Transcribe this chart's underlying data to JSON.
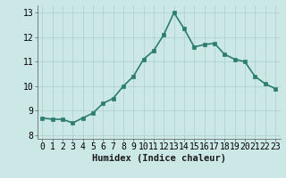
{
  "x": [
    0,
    1,
    2,
    3,
    4,
    5,
    6,
    7,
    8,
    9,
    10,
    11,
    12,
    13,
    14,
    15,
    16,
    17,
    18,
    19,
    20,
    21,
    22,
    23
  ],
  "y": [
    8.7,
    8.65,
    8.65,
    8.5,
    8.7,
    8.9,
    9.3,
    9.5,
    10.0,
    10.4,
    11.1,
    11.45,
    12.1,
    13.0,
    12.35,
    11.6,
    11.7,
    11.75,
    11.3,
    11.1,
    11.0,
    10.4,
    10.1,
    9.9
  ],
  "line_color": "#2d7d6e",
  "marker_color": "#2d7d6e",
  "bg_color": "#cce8e6",
  "grid_color": "#b0d4d0",
  "xlabel": "Humidex (Indice chaleur)",
  "xlim": [
    -0.5,
    23.5
  ],
  "ylim": [
    7.85,
    13.3
  ],
  "yticks": [
    8,
    9,
    10,
    11,
    12,
    13
  ],
  "xticks": [
    0,
    1,
    2,
    3,
    4,
    5,
    6,
    7,
    8,
    9,
    10,
    11,
    12,
    13,
    14,
    15,
    16,
    17,
    18,
    19,
    20,
    21,
    22,
    23
  ],
  "xtick_labels": [
    "0",
    "1",
    "2",
    "3",
    "4",
    "5",
    "6",
    "7",
    "8",
    "9",
    "10",
    "11",
    "12",
    "13",
    "14",
    "15",
    "16",
    "17",
    "18",
    "19",
    "20",
    "21",
    "22",
    "23"
  ],
  "xlabel_fontsize": 7.5,
  "tick_fontsize": 7,
  "linewidth": 1.2,
  "markersize": 2.5
}
